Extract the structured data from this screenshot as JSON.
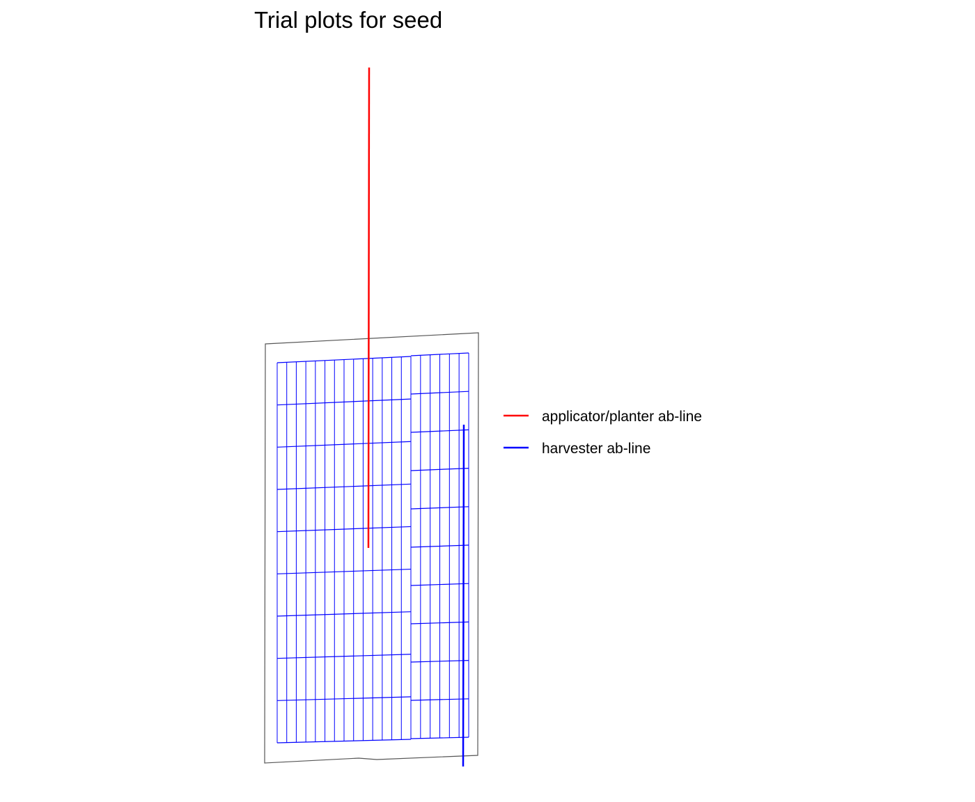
{
  "title": "Trial plots for seed",
  "legend": {
    "items": [
      {
        "label": "applicator/planter ab-line",
        "color": "#ff0000"
      },
      {
        "label": "harvester ab-line",
        "color": "#0000ff"
      }
    ]
  },
  "colors": {
    "field_boundary": "#555555",
    "plot_grid": "#0000ff",
    "background": "#ffffff"
  },
  "plot_grid": {
    "left_section_columns": 14,
    "right_section_columns": 6,
    "left_section_rows": 9,
    "right_section_rows": 10
  }
}
